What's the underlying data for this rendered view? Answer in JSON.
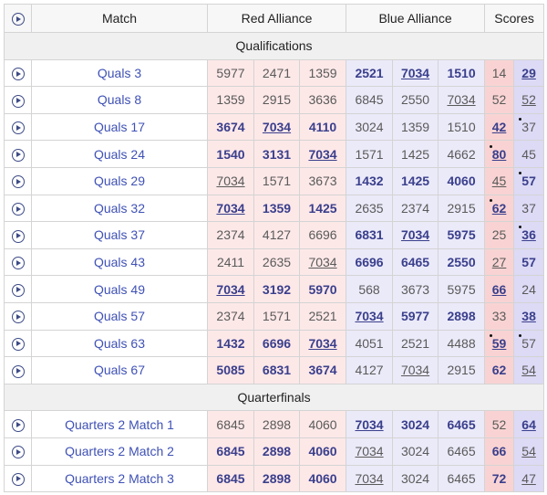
{
  "header": {
    "match": "Match",
    "red": "Red Alliance",
    "blue": "Blue Alliance",
    "scores": "Scores"
  },
  "sections": [
    {
      "title": "Qualifications",
      "rows": [
        {
          "match": "Quals 3",
          "red": [
            {
              "t": "5977"
            },
            {
              "t": "2471"
            },
            {
              "t": "1359"
            }
          ],
          "blue": [
            {
              "t": "2521",
              "b": true
            },
            {
              "t": "7034",
              "b": true,
              "u": true
            },
            {
              "t": "1510",
              "b": true
            }
          ],
          "red_score": {
            "t": "14"
          },
          "blue_score": {
            "t": "29",
            "b": true,
            "u": true
          }
        },
        {
          "match": "Quals 8",
          "red": [
            {
              "t": "1359"
            },
            {
              "t": "2915"
            },
            {
              "t": "3636"
            }
          ],
          "blue": [
            {
              "t": "6845"
            },
            {
              "t": "2550"
            },
            {
              "t": "7034",
              "u": true
            }
          ],
          "red_score": {
            "t": "52"
          },
          "blue_score": {
            "t": "52",
            "u": true
          }
        },
        {
          "match": "Quals 17",
          "red": [
            {
              "t": "3674",
              "b": true
            },
            {
              "t": "7034",
              "b": true,
              "u": true
            },
            {
              "t": "4110",
              "b": true
            }
          ],
          "blue": [
            {
              "t": "3024"
            },
            {
              "t": "1359"
            },
            {
              "t": "1510"
            }
          ],
          "red_score": {
            "t": "42",
            "b": true,
            "u": true
          },
          "blue_score": {
            "t": "37",
            "d": true
          }
        },
        {
          "match": "Quals 24",
          "red": [
            {
              "t": "1540",
              "b": true
            },
            {
              "t": "3131",
              "b": true
            },
            {
              "t": "7034",
              "b": true,
              "u": true
            }
          ],
          "blue": [
            {
              "t": "1571"
            },
            {
              "t": "1425"
            },
            {
              "t": "4662"
            }
          ],
          "red_score": {
            "t": "80",
            "b": true,
            "u": true,
            "d": true
          },
          "blue_score": {
            "t": "45"
          }
        },
        {
          "match": "Quals 29",
          "red": [
            {
              "t": "7034",
              "u": true
            },
            {
              "t": "1571"
            },
            {
              "t": "3673"
            }
          ],
          "blue": [
            {
              "t": "1432",
              "b": true
            },
            {
              "t": "1425",
              "b": true
            },
            {
              "t": "4060",
              "b": true
            }
          ],
          "red_score": {
            "t": "45",
            "u": true
          },
          "blue_score": {
            "t": "57",
            "b": true,
            "d": true
          }
        },
        {
          "match": "Quals 32",
          "red": [
            {
              "t": "7034",
              "b": true,
              "u": true
            },
            {
              "t": "1359",
              "b": true
            },
            {
              "t": "1425",
              "b": true
            }
          ],
          "blue": [
            {
              "t": "2635"
            },
            {
              "t": "2374"
            },
            {
              "t": "2915"
            }
          ],
          "red_score": {
            "t": "62",
            "b": true,
            "u": true,
            "d": true
          },
          "blue_score": {
            "t": "37"
          }
        },
        {
          "match": "Quals 37",
          "red": [
            {
              "t": "2374"
            },
            {
              "t": "4127"
            },
            {
              "t": "6696"
            }
          ],
          "blue": [
            {
              "t": "6831",
              "b": true
            },
            {
              "t": "7034",
              "b": true,
              "u": true
            },
            {
              "t": "5975",
              "b": true
            }
          ],
          "red_score": {
            "t": "25"
          },
          "blue_score": {
            "t": "36",
            "b": true,
            "u": true,
            "d": true
          }
        },
        {
          "match": "Quals 43",
          "red": [
            {
              "t": "2411"
            },
            {
              "t": "2635"
            },
            {
              "t": "7034",
              "u": true
            }
          ],
          "blue": [
            {
              "t": "6696",
              "b": true
            },
            {
              "t": "6465",
              "b": true
            },
            {
              "t": "2550",
              "b": true
            }
          ],
          "red_score": {
            "t": "27",
            "u": true
          },
          "blue_score": {
            "t": "57",
            "b": true
          }
        },
        {
          "match": "Quals 49",
          "red": [
            {
              "t": "7034",
              "b": true,
              "u": true
            },
            {
              "t": "3192",
              "b": true
            },
            {
              "t": "5970",
              "b": true
            }
          ],
          "blue": [
            {
              "t": "568"
            },
            {
              "t": "3673"
            },
            {
              "t": "5975"
            }
          ],
          "red_score": {
            "t": "66",
            "b": true,
            "u": true
          },
          "blue_score": {
            "t": "24"
          }
        },
        {
          "match": "Quals 57",
          "red": [
            {
              "t": "2374"
            },
            {
              "t": "1571"
            },
            {
              "t": "2521"
            }
          ],
          "blue": [
            {
              "t": "7034",
              "b": true,
              "u": true
            },
            {
              "t": "5977",
              "b": true
            },
            {
              "t": "2898",
              "b": true
            }
          ],
          "red_score": {
            "t": "33"
          },
          "blue_score": {
            "t": "38",
            "b": true,
            "u": true
          }
        },
        {
          "match": "Quals 63",
          "red": [
            {
              "t": "1432",
              "b": true
            },
            {
              "t": "6696",
              "b": true
            },
            {
              "t": "7034",
              "b": true,
              "u": true
            }
          ],
          "blue": [
            {
              "t": "4051"
            },
            {
              "t": "2521"
            },
            {
              "t": "4488"
            }
          ],
          "red_score": {
            "t": "59",
            "b": true,
            "u": true,
            "d": true
          },
          "blue_score": {
            "t": "57",
            "d": true
          }
        },
        {
          "match": "Quals 67",
          "red": [
            {
              "t": "5085",
              "b": true
            },
            {
              "t": "6831",
              "b": true
            },
            {
              "t": "3674",
              "b": true
            }
          ],
          "blue": [
            {
              "t": "4127"
            },
            {
              "t": "7034",
              "u": true
            },
            {
              "t": "2915"
            }
          ],
          "red_score": {
            "t": "62",
            "b": true
          },
          "blue_score": {
            "t": "54",
            "u": true
          }
        }
      ]
    },
    {
      "title": "Quarterfinals",
      "rows": [
        {
          "match": "Quarters 2 Match 1",
          "red": [
            {
              "t": "6845"
            },
            {
              "t": "2898"
            },
            {
              "t": "4060"
            }
          ],
          "blue": [
            {
              "t": "7034",
              "b": true,
              "u": true
            },
            {
              "t": "3024",
              "b": true
            },
            {
              "t": "6465",
              "b": true
            }
          ],
          "red_score": {
            "t": "52"
          },
          "blue_score": {
            "t": "64",
            "b": true,
            "u": true
          }
        },
        {
          "match": "Quarters 2 Match 2",
          "red": [
            {
              "t": "6845",
              "b": true
            },
            {
              "t": "2898",
              "b": true
            },
            {
              "t": "4060",
              "b": true
            }
          ],
          "blue": [
            {
              "t": "7034",
              "u": true
            },
            {
              "t": "3024"
            },
            {
              "t": "6465"
            }
          ],
          "red_score": {
            "t": "66",
            "b": true
          },
          "blue_score": {
            "t": "54",
            "u": true
          }
        },
        {
          "match": "Quarters 2 Match 3",
          "red": [
            {
              "t": "6845",
              "b": true
            },
            {
              "t": "2898",
              "b": true
            },
            {
              "t": "4060",
              "b": true
            }
          ],
          "blue": [
            {
              "t": "7034",
              "u": true
            },
            {
              "t": "3024"
            },
            {
              "t": "6465"
            }
          ],
          "red_score": {
            "t": "72",
            "b": true
          },
          "blue_score": {
            "t": "47",
            "u": true
          }
        }
      ]
    }
  ]
}
